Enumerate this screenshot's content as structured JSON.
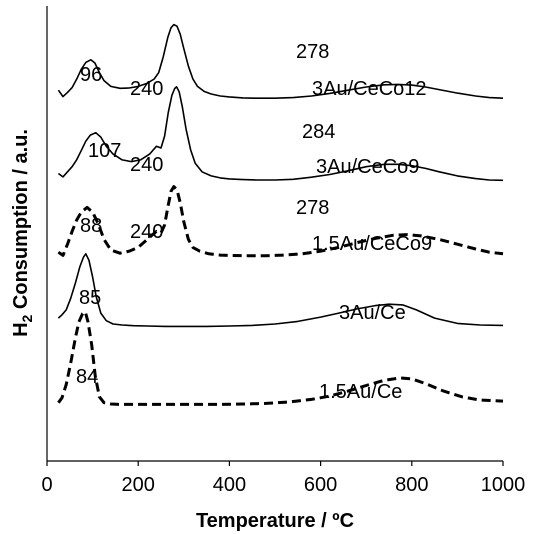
{
  "chart_data": {
    "type": "line",
    "title": "",
    "xlabel": "Temperature / ºC",
    "ylabel_main": "H",
    "ylabel_sub": "2",
    "ylabel_rest": " Consumption / a.u.",
    "xlim": [
      0,
      1000
    ],
    "xticks": [
      "0",
      "200",
      "400",
      "600",
      "800",
      "1000"
    ],
    "grid": false,
    "series": [
      {
        "name": "3Au/CeCo12",
        "style": "solid",
        "x": [
          25,
          35,
          45,
          55,
          65,
          75,
          85,
          96,
          105,
          115,
          125,
          140,
          160,
          180,
          200,
          220,
          235,
          245,
          255,
          265,
          272,
          278,
          285,
          292,
          300,
          310,
          320,
          330,
          345,
          360,
          380,
          400,
          430,
          460,
          500,
          540,
          580,
          620,
          660,
          700,
          740,
          770,
          800,
          830,
          860,
          900,
          940,
          970,
          1000
        ],
        "y": [
          0.4,
          0.2,
          0.33,
          0.48,
          0.74,
          1.05,
          1.27,
          1.35,
          1.25,
          0.95,
          0.7,
          0.52,
          0.46,
          0.47,
          0.52,
          0.62,
          0.75,
          0.95,
          1.45,
          2.05,
          2.35,
          2.45,
          2.4,
          2.15,
          1.7,
          1.15,
          0.75,
          0.52,
          0.36,
          0.28,
          0.22,
          0.19,
          0.16,
          0.15,
          0.15,
          0.17,
          0.22,
          0.3,
          0.4,
          0.5,
          0.57,
          0.58,
          0.56,
          0.5,
          0.42,
          0.31,
          0.22,
          0.17,
          0.15
        ]
      },
      {
        "name": "3Au/CeCo9",
        "style": "solid",
        "x": [
          25,
          35,
          45,
          55,
          65,
          75,
          85,
          95,
          107,
          118,
          130,
          145,
          165,
          185,
          205,
          225,
          240,
          250,
          258,
          266,
          274,
          280,
          284,
          290,
          297,
          305,
          315,
          325,
          340,
          360,
          380,
          400,
          430,
          460,
          500,
          540,
          580,
          620,
          660,
          700,
          740,
          770,
          800,
          830,
          860,
          900,
          940,
          970,
          1000
        ],
        "y": [
          0.25,
          0.15,
          0.3,
          0.45,
          0.65,
          0.92,
          1.2,
          1.38,
          1.45,
          1.32,
          1.05,
          0.82,
          0.65,
          0.6,
          0.65,
          0.82,
          1.05,
          1.0,
          1.35,
          2.05,
          2.55,
          2.75,
          2.8,
          2.65,
          2.2,
          1.55,
          0.95,
          0.55,
          0.3,
          0.18,
          0.12,
          0.09,
          0.07,
          0.06,
          0.06,
          0.08,
          0.14,
          0.22,
          0.33,
          0.45,
          0.52,
          0.52,
          0.48,
          0.4,
          0.3,
          0.18,
          0.1,
          0.06,
          0.05
        ]
      },
      {
        "name": "1.5Au/CeCo9",
        "style": "dashed",
        "x": [
          25,
          35,
          45,
          55,
          65,
          75,
          88,
          100,
          112,
          125,
          140,
          160,
          180,
          200,
          220,
          240,
          250,
          258,
          265,
          272,
          278,
          285,
          292,
          300,
          310,
          320,
          335,
          355,
          380,
          400,
          440,
          480,
          520,
          560,
          600,
          640,
          680,
          720,
          760,
          790,
          820,
          860,
          900,
          940,
          970,
          1000
        ],
        "y": [
          0.15,
          0.05,
          0.4,
          0.8,
          1.15,
          1.4,
          1.55,
          1.4,
          1.05,
          0.55,
          0.22,
          0.12,
          0.18,
          0.3,
          0.55,
          0.8,
          0.75,
          1.0,
          1.55,
          2.05,
          2.2,
          2.1,
          1.7,
          1.1,
          0.55,
          0.3,
          0.18,
          0.1,
          0.06,
          0.05,
          0.04,
          0.04,
          0.06,
          0.1,
          0.18,
          0.3,
          0.45,
          0.58,
          0.68,
          0.7,
          0.66,
          0.55,
          0.4,
          0.25,
          0.15,
          0.1
        ]
      },
      {
        "name": "3Au/Ce",
        "style": "solid",
        "x": [
          25,
          33,
          42,
          52,
          62,
          72,
          80,
          85,
          92,
          100,
          108,
          118,
          130,
          145,
          165,
          190,
          220,
          260,
          300,
          350,
          400,
          450,
          500,
          550,
          600,
          640,
          680,
          720,
          750,
          780,
          810,
          850,
          900,
          950,
          1000
        ],
        "y": [
          0.3,
          0.4,
          0.55,
          0.9,
          1.35,
          1.85,
          2.15,
          2.25,
          2.05,
          1.55,
          0.95,
          0.45,
          0.22,
          0.12,
          0.09,
          0.07,
          0.06,
          0.05,
          0.05,
          0.05,
          0.06,
          0.08,
          0.12,
          0.2,
          0.33,
          0.45,
          0.58,
          0.68,
          0.72,
          0.7,
          0.55,
          0.3,
          0.14,
          0.09,
          0.08
        ]
      },
      {
        "name": "1.5Au/Ce",
        "style": "dashed",
        "x": [
          25,
          33,
          42,
          52,
          62,
          70,
          78,
          84,
          90,
          98,
          106,
          115,
          125,
          140,
          160,
          190,
          230,
          280,
          330,
          380,
          430,
          480,
          530,
          580,
          620,
          660,
          700,
          740,
          775,
          800,
          830,
          870,
          910,
          950,
          1000
        ],
        "y": [
          0.1,
          0.25,
          0.65,
          1.3,
          2.05,
          2.55,
          2.8,
          2.85,
          2.55,
          1.85,
          0.9,
          0.28,
          0.1,
          0.06,
          0.05,
          0.05,
          0.05,
          0.05,
          0.05,
          0.05,
          0.06,
          0.08,
          0.12,
          0.2,
          0.3,
          0.45,
          0.62,
          0.78,
          0.85,
          0.82,
          0.68,
          0.45,
          0.28,
          0.18,
          0.15
        ]
      }
    ],
    "peak_labels": [
      {
        "series": "3Au/CeCo12",
        "labels": [
          "96",
          "240",
          "278"
        ]
      },
      {
        "series": "3Au/CeCo9",
        "labels": [
          "107",
          "240",
          "284"
        ]
      },
      {
        "series": "1.5Au/CeCo9",
        "labels": [
          "88",
          "240",
          "278"
        ]
      },
      {
        "series": "3Au/Ce",
        "labels": [
          "85"
        ]
      },
      {
        "series": "1.5Au/Ce",
        "labels": [
          "84"
        ]
      }
    ]
  }
}
